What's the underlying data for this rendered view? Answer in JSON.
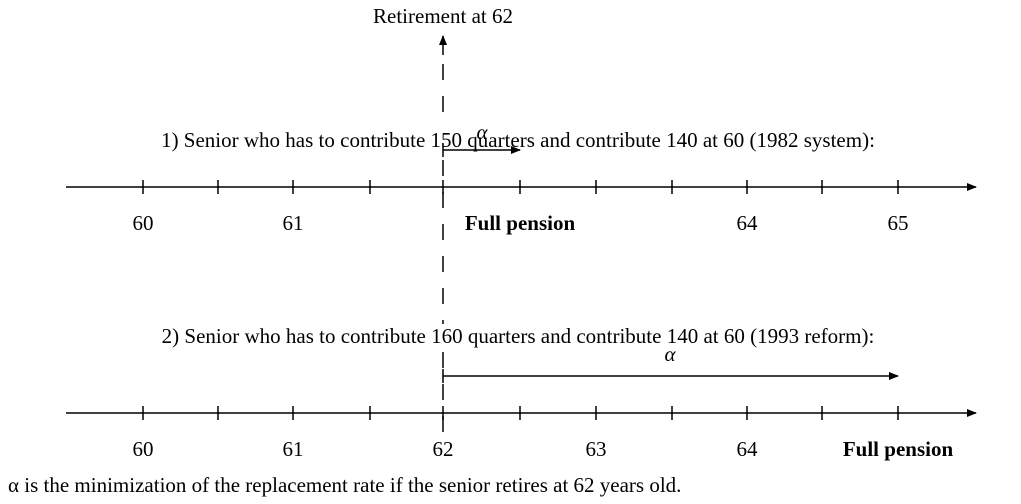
{
  "title": "Retirement at 62",
  "scenarios": [
    {
      "text": "1) Senior who has to contribute 150 quarters and contribute 140 at 60 (1982 system):",
      "alpha": "α",
      "labels": [
        "60",
        "61",
        "Full pension",
        "64",
        "65"
      ]
    },
    {
      "text": "2) Senior who has to contribute 160 quarters and contribute 140 at 60 (1993 reform):",
      "alpha": "α",
      "labels": [
        "60",
        "61",
        "62",
        "63",
        "64",
        "Full pension"
      ]
    }
  ],
  "footnote": "α is the minimization of the replacement rate if the senior retires at 62 years old."
}
